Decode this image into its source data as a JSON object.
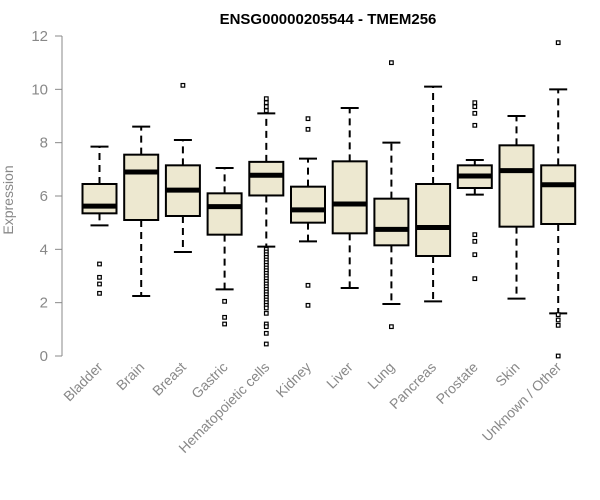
{
  "chart_data": {
    "type": "boxplot",
    "title": "ENSG00000205544 - TMEM256",
    "xlabel": "",
    "ylabel": "Expression",
    "ylim": [
      0,
      12
    ],
    "yticks": [
      0,
      2,
      4,
      6,
      8,
      10,
      12
    ],
    "colors": {
      "box_fill": "#ede8d0",
      "median": "#000000",
      "axis": "#888888"
    },
    "categories": [
      "Bladder",
      "Brain",
      "Breast",
      "Gastric",
      "Hematopoietic cells",
      "Kidney",
      "Liver",
      "Lung",
      "Pancreas",
      "Prostate",
      "Skin",
      "Unknown / Other"
    ],
    "series": [
      {
        "name": "Bladder",
        "whisker_low": 4.9,
        "q1": 5.35,
        "median": 5.62,
        "q3": 6.45,
        "whisker_high": 7.85,
        "outliers": [
          3.45,
          2.95,
          2.7,
          2.35
        ]
      },
      {
        "name": "Brain",
        "whisker_low": 2.25,
        "q1": 5.1,
        "median": 6.9,
        "q3": 7.55,
        "whisker_high": 8.6,
        "outliers": []
      },
      {
        "name": "Breast",
        "whisker_low": 3.9,
        "q1": 5.25,
        "median": 6.22,
        "q3": 7.15,
        "whisker_high": 8.1,
        "outliers": [
          10.15
        ]
      },
      {
        "name": "Gastric",
        "whisker_low": 2.5,
        "q1": 4.55,
        "median": 5.6,
        "q3": 6.1,
        "whisker_high": 7.05,
        "outliers": [
          2.05,
          1.45,
          1.2
        ]
      },
      {
        "name": "Hematopoietic cells",
        "whisker_low": 4.1,
        "q1": 6.02,
        "median": 6.78,
        "q3": 7.28,
        "whisker_high": 9.1,
        "outliers": [
          9.65,
          9.5,
          9.35,
          9.2,
          4.0,
          3.9,
          3.8,
          3.7,
          3.6,
          3.5,
          3.4,
          3.3,
          3.2,
          3.1,
          3.0,
          2.9,
          2.8,
          2.7,
          2.6,
          2.5,
          2.4,
          2.3,
          2.2,
          2.1,
          2.0,
          1.9,
          1.8,
          1.6,
          1.2,
          1.1,
          0.85,
          0.45
        ]
      },
      {
        "name": "Kidney",
        "whisker_low": 4.3,
        "q1": 5.0,
        "median": 5.48,
        "q3": 6.35,
        "whisker_high": 7.4,
        "outliers": [
          8.9,
          8.5,
          2.65,
          1.9
        ]
      },
      {
        "name": "Liver",
        "whisker_low": 2.55,
        "q1": 4.6,
        "median": 5.7,
        "q3": 7.3,
        "whisker_high": 9.3,
        "outliers": []
      },
      {
        "name": "Lung",
        "whisker_low": 1.95,
        "q1": 4.15,
        "median": 4.75,
        "q3": 5.9,
        "whisker_high": 8.0,
        "outliers": [
          11.0,
          1.1
        ]
      },
      {
        "name": "Pancreas",
        "whisker_low": 2.05,
        "q1": 3.75,
        "median": 4.82,
        "q3": 6.45,
        "whisker_high": 10.1,
        "outliers": []
      },
      {
        "name": "Prostate",
        "whisker_low": 6.05,
        "q1": 6.3,
        "median": 6.75,
        "q3": 7.15,
        "whisker_high": 7.35,
        "outliers": [
          9.5,
          9.35,
          9.1,
          8.65,
          4.55,
          4.3,
          3.8,
          2.9
        ]
      },
      {
        "name": "Skin",
        "whisker_low": 2.15,
        "q1": 4.85,
        "median": 6.95,
        "q3": 7.9,
        "whisker_high": 9.0,
        "outliers": []
      },
      {
        "name": "Unknown / Other",
        "whisker_low": 1.6,
        "q1": 4.95,
        "median": 6.42,
        "q3": 7.15,
        "whisker_high": 10.0,
        "outliers": [
          11.75,
          1.55,
          1.35,
          1.15,
          0.0
        ]
      }
    ]
  }
}
